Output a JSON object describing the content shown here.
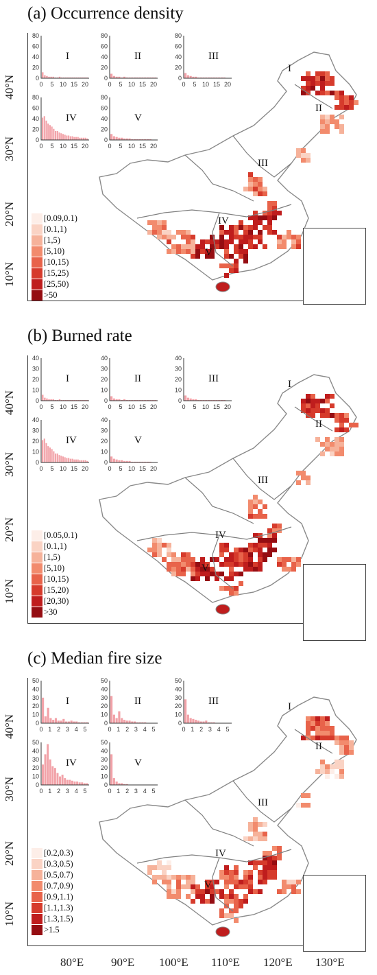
{
  "panels": [
    {
      "title": "(a) Occurrence density",
      "hist_yticks": [
        "0",
        "20",
        "40",
        "60",
        "80"
      ],
      "hist_xticks": [
        "0",
        "5",
        "10",
        "15",
        "20"
      ],
      "regions": [
        "I",
        "II",
        "III",
        "IV",
        "V"
      ],
      "legend": [
        "[0.09,0.1)",
        "[0.1,1)",
        "[1,5)",
        "[5,10)",
        "[10,15)",
        "[15,25)",
        "[25,50)",
        ">50"
      ]
    },
    {
      "title": "(b) Burned rate",
      "hist_yticks": [
        "0",
        "10",
        "20",
        "30",
        "40"
      ],
      "hist_xticks": [
        "0",
        "5",
        "10",
        "15",
        "20"
      ],
      "regions": [
        "I",
        "II",
        "III",
        "IV",
        "V"
      ],
      "legend": [
        "[0.05,0.1)",
        "[0.1,1)",
        "[1,5)",
        "[5,10)",
        "[10,15)",
        "[15,20)",
        "[20,30)",
        ">30"
      ]
    },
    {
      "title": "(c) Median fire size",
      "hist_yticks": [
        "0",
        "10",
        "20",
        "30",
        "40",
        "50"
      ],
      "hist_xticks": [
        "0",
        "1",
        "2",
        "3",
        "4",
        "5"
      ],
      "regions": [
        "I",
        "II",
        "III",
        "IV",
        "V"
      ],
      "legend": [
        "[0.2,0.3)",
        "[0.3,0.5)",
        "[0.5,0.7)",
        "[0.7,0.9)",
        "[0.9,1.1)",
        "[1.1,1.3)",
        "[1.3,1.5)",
        ">1.5"
      ]
    }
  ],
  "lat_labels": [
    "40°N",
    "30°N",
    "20°N",
    "10°N"
  ],
  "lon_labels": [
    "80°E",
    "90°E",
    "100°E",
    "110°E",
    "120°E",
    "130°E"
  ],
  "colors": {
    "ramp": [
      "#fdeee8",
      "#fad3c4",
      "#f6b29a",
      "#f28b6d",
      "#e8634a",
      "#d63b2c",
      "#bf1d1d",
      "#950d12"
    ],
    "hist_bar": "#f2a2a8",
    "boundary": "#8a8a8a"
  }
}
